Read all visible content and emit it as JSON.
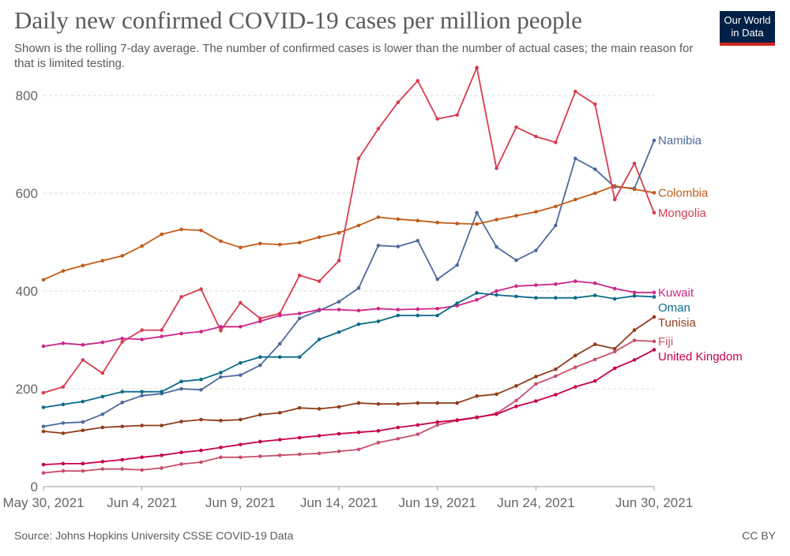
{
  "title": "Daily new confirmed COVID-19 cases per million people",
  "subtitle": "Shown is the rolling 7-day average. The number of confirmed cases is lower than the number of actual cases; the main reason for that is limited testing.",
  "logo": {
    "line1": "Our World",
    "line2": "in Data",
    "bg_color": "#002147",
    "accent_color": "#ce261e"
  },
  "source": "Source: Johns Hopkins University CSSE COVID-19 Data",
  "license": "CC BY",
  "chart_data": {
    "type": "line",
    "title": "Daily new confirmed COVID-19 cases per million people",
    "xlabel": "",
    "ylabel": "",
    "x": [
      "2021-05-30",
      "2021-05-31",
      "2021-06-01",
      "2021-06-02",
      "2021-06-03",
      "2021-06-04",
      "2021-06-05",
      "2021-06-06",
      "2021-06-07",
      "2021-06-08",
      "2021-06-09",
      "2021-06-10",
      "2021-06-11",
      "2021-06-12",
      "2021-06-13",
      "2021-06-14",
      "2021-06-15",
      "2021-06-16",
      "2021-06-17",
      "2021-06-18",
      "2021-06-19",
      "2021-06-20",
      "2021-06-21",
      "2021-06-22",
      "2021-06-23",
      "2021-06-24",
      "2021-06-25",
      "2021-06-26",
      "2021-06-27",
      "2021-06-28",
      "2021-06-29",
      "2021-06-30"
    ],
    "x_ticks": [
      "May 30, 2021",
      "Jun 4, 2021",
      "Jun 9, 2021",
      "Jun 14, 2021",
      "Jun 19, 2021",
      "Jun 24, 2021",
      "Jun 30, 2021"
    ],
    "y_ticks": [
      0,
      200,
      400,
      600,
      800
    ],
    "ylim": [
      0,
      850
    ],
    "grid": "horizontal dashed",
    "legend": "labels at right end of lines",
    "series": [
      {
        "name": "Namibia",
        "color": "#4c6a9c",
        "values": [
          123,
          130,
          132,
          148,
          172,
          186,
          190,
          200,
          198,
          224,
          228,
          248,
          292,
          344,
          360,
          378,
          406,
          493,
          491,
          503,
          424,
          453,
          560,
          490,
          463,
          483,
          534,
          671,
          649,
          613,
          610,
          708
        ]
      },
      {
        "name": "Colombia",
        "color": "#c15b18",
        "values": [
          423,
          441,
          452,
          462,
          472,
          492,
          516,
          526,
          524,
          502,
          489,
          497,
          495,
          499,
          510,
          519,
          534,
          551,
          547,
          544,
          540,
          538,
          537,
          546,
          554,
          562,
          573,
          587,
          600,
          615,
          608,
          601
        ]
      },
      {
        "name": "Mongolia",
        "color": "#d73c50",
        "values": [
          192,
          204,
          259,
          232,
          296,
          320,
          320,
          388,
          404,
          319,
          376,
          344,
          354,
          432,
          420,
          462,
          671,
          732,
          786,
          830,
          752,
          760,
          857,
          651,
          735,
          716,
          704,
          808,
          782,
          587,
          661,
          560
        ]
      },
      {
        "name": "Kuwait",
        "color": "#cc2789",
        "values": [
          287,
          293,
          290,
          295,
          303,
          301,
          307,
          313,
          317,
          327,
          327,
          338,
          350,
          354,
          362,
          362,
          360,
          364,
          362,
          363,
          364,
          370,
          382,
          400,
          410,
          412,
          414,
          420,
          416,
          405,
          397,
          397
        ]
      },
      {
        "name": "Oman",
        "color": "#0c6b8a",
        "values": [
          162,
          168,
          174,
          184,
          194,
          194,
          194,
          215,
          219,
          233,
          253,
          265,
          265,
          265,
          301,
          316,
          332,
          338,
          350,
          350,
          350,
          375,
          396,
          392,
          389,
          386,
          386,
          386,
          391,
          384,
          390,
          388
        ]
      },
      {
        "name": "Tunisia",
        "color": "#8f3e1a",
        "values": [
          113,
          109,
          115,
          121,
          123,
          125,
          125,
          133,
          137,
          135,
          137,
          147,
          151,
          161,
          159,
          163,
          171,
          169,
          169,
          171,
          171,
          171,
          185,
          189,
          206,
          225,
          240,
          268,
          291,
          282,
          320,
          347
        ]
      },
      {
        "name": "Fiji",
        "color": "#c84f6c",
        "values": [
          28,
          32,
          32,
          36,
          36,
          34,
          38,
          46,
          50,
          60,
          60,
          62,
          64,
          66,
          68,
          72,
          76,
          90,
          98,
          107,
          126,
          135,
          141,
          150,
          176,
          210,
          226,
          244,
          260,
          276,
          299,
          297
        ]
      },
      {
        "name": "United Kingdom",
        "color": "#c8004c",
        "values": [
          45,
          47,
          47,
          51,
          55,
          60,
          64,
          70,
          74,
          80,
          86,
          92,
          96,
          100,
          104,
          108,
          111,
          114,
          121,
          126,
          132,
          136,
          142,
          148,
          164,
          175,
          188,
          204,
          216,
          242,
          259,
          280
        ]
      }
    ]
  }
}
